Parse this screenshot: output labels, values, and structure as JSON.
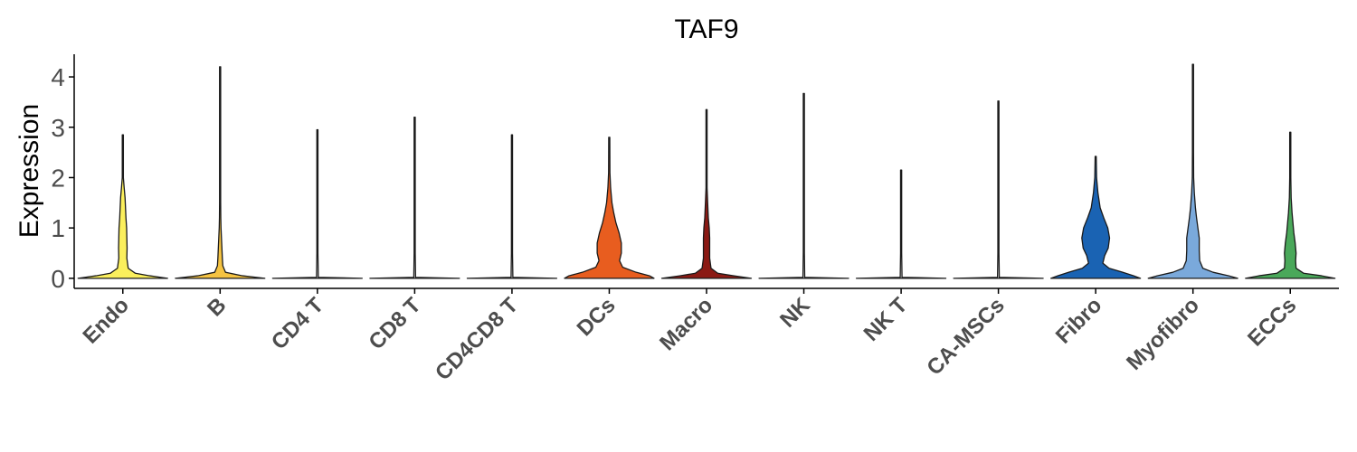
{
  "chart_data": {
    "type": "violin",
    "title": "TAF9",
    "xlabel": "",
    "ylabel": "Expression",
    "ylim": [
      -0.2,
      4.45
    ],
    "yticks": [
      0,
      1,
      2,
      3,
      4
    ],
    "categories": [
      "Endo",
      "B",
      "CD4 T",
      "CD8 T",
      "CD4CD8 T",
      "DCs",
      "Macro",
      "NK",
      "NK T",
      "CA-MSCs",
      "Fibro",
      "Myofibro",
      "ECCs"
    ],
    "series": [
      {
        "category": "Endo",
        "color": "#fbef5c",
        "max": 2.85,
        "profile": [
          [
            0,
            1.0
          ],
          [
            0.05,
            0.6
          ],
          [
            0.1,
            0.28
          ],
          [
            0.2,
            0.12
          ],
          [
            0.4,
            0.09
          ],
          [
            0.6,
            0.095
          ],
          [
            0.8,
            0.09
          ],
          [
            1.0,
            0.085
          ],
          [
            1.2,
            0.07
          ],
          [
            1.4,
            0.06
          ],
          [
            1.6,
            0.05
          ],
          [
            1.8,
            0.03
          ],
          [
            2.0,
            0.012
          ],
          [
            2.4,
            0.005
          ],
          [
            2.85,
            0.002
          ]
        ]
      },
      {
        "category": "B",
        "color": "#f5c342",
        "max": 4.2,
        "profile": [
          [
            0,
            1.0
          ],
          [
            0.05,
            0.5
          ],
          [
            0.12,
            0.12
          ],
          [
            0.25,
            0.06
          ],
          [
            0.4,
            0.05
          ],
          [
            0.6,
            0.04
          ],
          [
            0.8,
            0.03
          ],
          [
            1.0,
            0.02
          ],
          [
            1.2,
            0.015
          ],
          [
            1.5,
            0.008
          ],
          [
            2.0,
            0.004
          ],
          [
            3.0,
            0.002
          ],
          [
            4.2,
            0.001
          ]
        ]
      },
      {
        "category": "CD4 T",
        "color": "#e8e8e8",
        "max": 2.95,
        "profile": [
          [
            0,
            1.0
          ],
          [
            0.02,
            0.02
          ],
          [
            0.5,
            0.002
          ],
          [
            2.95,
            0.001
          ]
        ]
      },
      {
        "category": "CD8 T",
        "color": "#e8e8e8",
        "max": 3.2,
        "profile": [
          [
            0,
            1.0
          ],
          [
            0.02,
            0.02
          ],
          [
            0.5,
            0.002
          ],
          [
            3.2,
            0.001
          ]
        ]
      },
      {
        "category": "CD4CD8 T",
        "color": "#e8e8e8",
        "max": 2.85,
        "profile": [
          [
            0,
            1.0
          ],
          [
            0.02,
            0.02
          ],
          [
            0.5,
            0.002
          ],
          [
            2.85,
            0.001
          ]
        ]
      },
      {
        "category": "DCs",
        "color": "#e85d1f",
        "max": 2.8,
        "profile": [
          [
            0,
            1.0
          ],
          [
            0.05,
            0.9
          ],
          [
            0.12,
            0.6
          ],
          [
            0.22,
            0.3
          ],
          [
            0.35,
            0.23
          ],
          [
            0.5,
            0.27
          ],
          [
            0.7,
            0.27
          ],
          [
            0.9,
            0.22
          ],
          [
            1.1,
            0.15
          ],
          [
            1.3,
            0.1
          ],
          [
            1.5,
            0.06
          ],
          [
            1.8,
            0.03
          ],
          [
            2.1,
            0.015
          ],
          [
            2.8,
            0.002
          ]
        ]
      },
      {
        "category": "Macro",
        "color": "#8b1a14",
        "max": 3.35,
        "profile": [
          [
            0,
            1.0
          ],
          [
            0.05,
            0.6
          ],
          [
            0.1,
            0.25
          ],
          [
            0.2,
            0.1
          ],
          [
            0.4,
            0.07
          ],
          [
            0.6,
            0.07
          ],
          [
            0.8,
            0.07
          ],
          [
            1.0,
            0.06
          ],
          [
            1.2,
            0.04
          ],
          [
            1.5,
            0.025
          ],
          [
            1.8,
            0.01
          ],
          [
            2.3,
            0.004
          ],
          [
            3.35,
            0.001
          ]
        ]
      },
      {
        "category": "NK",
        "color": "#e8e8e8",
        "max": 3.67,
        "profile": [
          [
            0,
            1.0
          ],
          [
            0.02,
            0.02
          ],
          [
            0.5,
            0.002
          ],
          [
            3.67,
            0.001
          ]
        ]
      },
      {
        "category": "NK T",
        "color": "#e8e8e8",
        "max": 2.15,
        "profile": [
          [
            0,
            1.0
          ],
          [
            0.02,
            0.02
          ],
          [
            0.5,
            0.002
          ],
          [
            2.15,
            0.001
          ]
        ]
      },
      {
        "category": "CA-MSCs",
        "color": "#e8e8e8",
        "max": 3.52,
        "profile": [
          [
            0,
            1.0
          ],
          [
            0.02,
            0.02
          ],
          [
            0.5,
            0.002
          ],
          [
            3.52,
            0.001
          ]
        ]
      },
      {
        "category": "Fibro",
        "color": "#1a63b3",
        "max": 2.42,
        "profile": [
          [
            0,
            1.0
          ],
          [
            0.05,
            0.85
          ],
          [
            0.12,
            0.6
          ],
          [
            0.2,
            0.3
          ],
          [
            0.3,
            0.16
          ],
          [
            0.45,
            0.2
          ],
          [
            0.6,
            0.28
          ],
          [
            0.8,
            0.31
          ],
          [
            1.0,
            0.27
          ],
          [
            1.2,
            0.18
          ],
          [
            1.4,
            0.1
          ],
          [
            1.7,
            0.05
          ],
          [
            2.0,
            0.02
          ],
          [
            2.42,
            0.004
          ]
        ]
      },
      {
        "category": "Myofibro",
        "color": "#7aa9db",
        "max": 4.25,
        "profile": [
          [
            0,
            1.0
          ],
          [
            0.05,
            0.8
          ],
          [
            0.12,
            0.45
          ],
          [
            0.2,
            0.22
          ],
          [
            0.35,
            0.15
          ],
          [
            0.55,
            0.14
          ],
          [
            0.8,
            0.14
          ],
          [
            1.0,
            0.11
          ],
          [
            1.2,
            0.08
          ],
          [
            1.4,
            0.055
          ],
          [
            1.7,
            0.03
          ],
          [
            2.0,
            0.015
          ],
          [
            2.5,
            0.006
          ],
          [
            3.2,
            0.003
          ],
          [
            4.25,
            0.001
          ]
        ]
      },
      {
        "category": "ECCs",
        "color": "#4aa85a",
        "max": 2.9,
        "profile": [
          [
            0,
            1.0
          ],
          [
            0.05,
            0.7
          ],
          [
            0.1,
            0.3
          ],
          [
            0.2,
            0.13
          ],
          [
            0.35,
            0.12
          ],
          [
            0.5,
            0.13
          ],
          [
            0.7,
            0.11
          ],
          [
            0.9,
            0.08
          ],
          [
            1.1,
            0.06
          ],
          [
            1.3,
            0.04
          ],
          [
            1.6,
            0.02
          ],
          [
            2.0,
            0.01
          ],
          [
            2.9,
            0.002
          ]
        ]
      }
    ],
    "grid": false,
    "legend": "none"
  }
}
